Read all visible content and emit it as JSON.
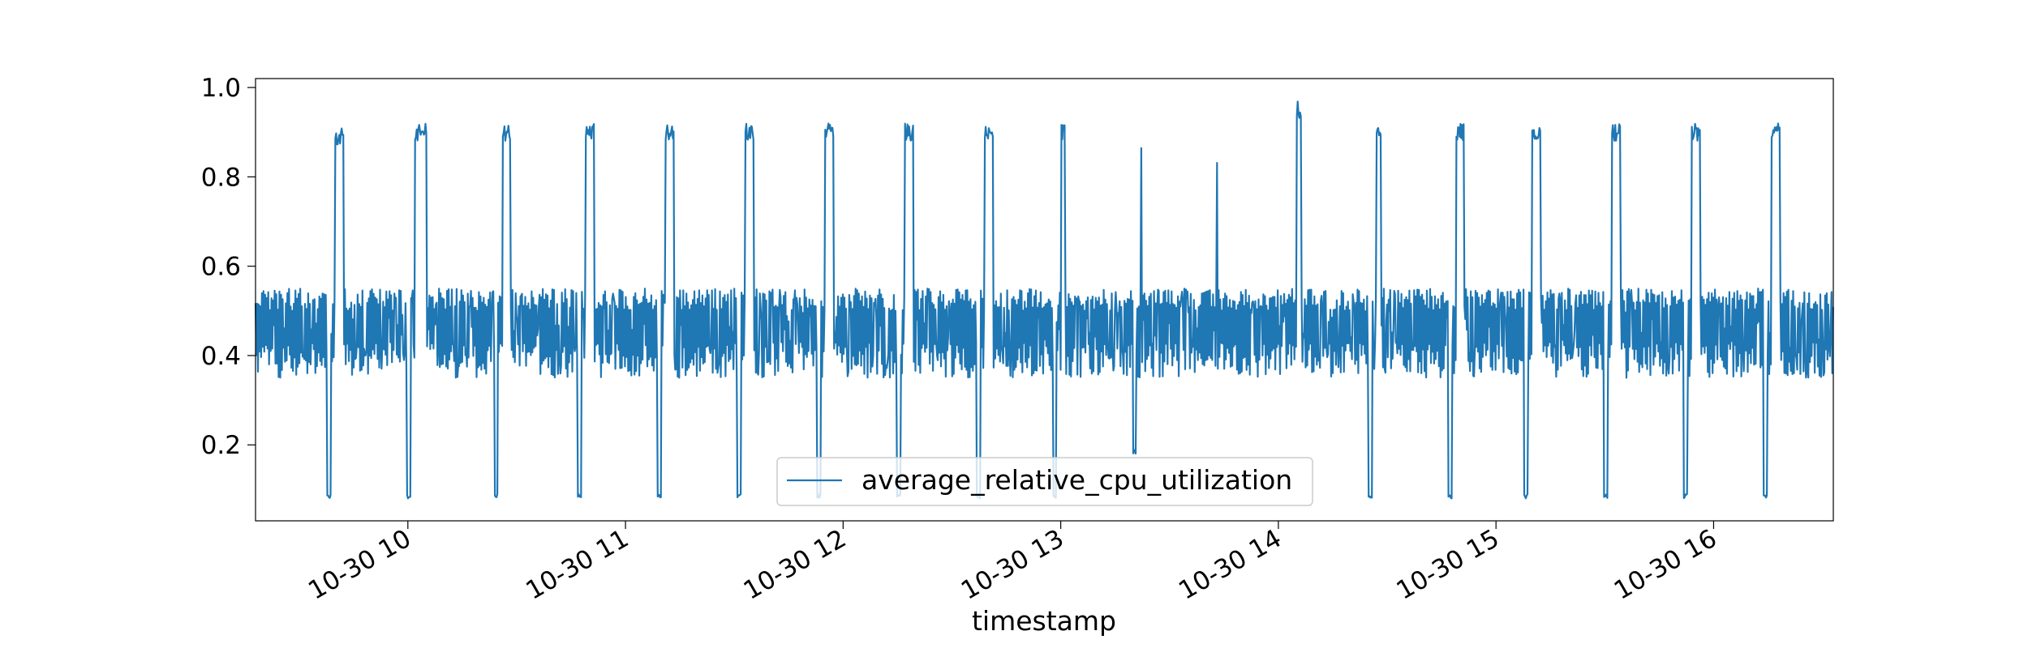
{
  "chart_data": {
    "type": "line",
    "title": "",
    "xlabel": "timestamp",
    "ylabel": "",
    "x_range": [
      "2014-10-30 09:18",
      "2014-10-30 16:33"
    ],
    "ylim": [
      0.03,
      1.02
    ],
    "grid": false,
    "legend_position": "lower center",
    "x_tick_labels": [
      "10-30 10",
      "10-30 11",
      "10-30 12",
      "10-30 13",
      "10-30 14",
      "10-30 15",
      "10-30 16"
    ],
    "y_tick_labels": [
      "0.2",
      "0.4",
      "0.6",
      "0.8",
      "1.0"
    ],
    "baseline_range": [
      0.35,
      0.55
    ],
    "colors": {
      "line": "#1f77b4"
    },
    "series": [
      {
        "name": "average_relative_cpu_utilization",
        "peaks": [
          {
            "start": "2014-10-30 09:40",
            "end": "2014-10-30 09:42",
            "value": 0.91,
            "dip": 0.08
          },
          {
            "start": "2014-10-30 10:02",
            "end": "2014-10-30 10:05",
            "value": 0.92,
            "dip": 0.08
          },
          {
            "start": "2014-10-30 10:26",
            "end": "2014-10-30 10:28",
            "value": 0.92,
            "dip": 0.08
          },
          {
            "start": "2014-10-30 10:49",
            "end": "2014-10-30 10:51",
            "value": 0.92,
            "dip": 0.08
          },
          {
            "start": "2014-10-30 11:11",
            "end": "2014-10-30 11:13",
            "value": 0.92,
            "dip": 0.08
          },
          {
            "start": "2014-10-30 11:33",
            "end": "2014-10-30 11:35",
            "value": 0.92,
            "dip": 0.08
          },
          {
            "start": "2014-10-30 11:55",
            "end": "2014-10-30 11:57",
            "value": 0.92,
            "dip": 0.08
          },
          {
            "start": "2014-10-30 12:17",
            "end": "2014-10-30 12:19",
            "value": 0.92,
            "dip": 0.08
          },
          {
            "start": "2014-10-30 12:39",
            "end": "2014-10-30 12:41",
            "value": 0.92,
            "dip": 0.08
          },
          {
            "start": "2014-10-30 13:00",
            "end": "2014-10-30 13:01",
            "value": 0.92,
            "dip": 0.08
          },
          {
            "start": "2014-10-30 13:22",
            "end": "2014-10-30 13:22",
            "value": 0.9,
            "dip": 0.18
          },
          {
            "start": "2014-10-30 13:43",
            "end": "2014-10-30 13:43",
            "value": 0.87,
            "dip": null
          },
          {
            "start": "2014-10-30 14:05",
            "end": "2014-10-30 14:06",
            "value": 0.97,
            "dip": null
          },
          {
            "start": "2014-10-30 14:27",
            "end": "2014-10-30 14:28",
            "value": 0.91,
            "dip": 0.08
          },
          {
            "start": "2014-10-30 14:49",
            "end": "2014-10-30 14:51",
            "value": 0.92,
            "dip": 0.08
          },
          {
            "start": "2014-10-30 15:10",
            "end": "2014-10-30 15:12",
            "value": 0.92,
            "dip": 0.08
          },
          {
            "start": "2014-10-30 15:32",
            "end": "2014-10-30 15:34",
            "value": 0.92,
            "dip": 0.08
          },
          {
            "start": "2014-10-30 15:54",
            "end": "2014-10-30 15:56",
            "value": 0.92,
            "dip": 0.08
          },
          {
            "start": "2014-10-30 16:16",
            "end": "2014-10-30 16:18",
            "value": 0.92,
            "dip": 0.08
          }
        ]
      }
    ]
  }
}
